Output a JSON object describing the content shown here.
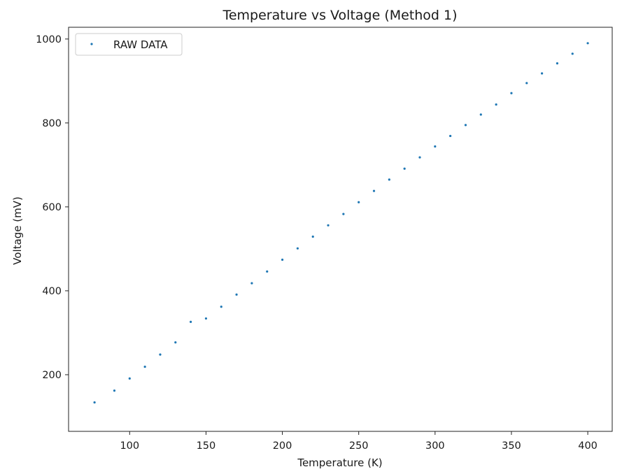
{
  "chart_data": {
    "type": "scatter",
    "title": "Temperature vs Voltage (Method 1)",
    "xlabel": "Temperature (K)",
    "ylabel": "Voltage (mV)",
    "xlim": [
      60,
      416
    ],
    "ylim": [
      65,
      1028
    ],
    "xticks": [
      100,
      150,
      200,
      250,
      300,
      350,
      400
    ],
    "yticks": [
      200,
      400,
      600,
      800,
      1000
    ],
    "grid": false,
    "legend_position": "top-left",
    "series": [
      {
        "name": "RAW DATA",
        "color": "#1f77b4",
        "marker": "point",
        "x": [
          77,
          90,
          100,
          110,
          120,
          130,
          140,
          150,
          160,
          170,
          180,
          190,
          200,
          210,
          220,
          230,
          240,
          250,
          260,
          270,
          280,
          290,
          300,
          310,
          320,
          330,
          340,
          350,
          360,
          370,
          380,
          390,
          400
        ],
        "y": [
          134,
          162,
          191,
          219,
          248,
          277,
          326,
          334,
          362,
          391,
          418,
          446,
          474,
          501,
          529,
          556,
          583,
          611,
          638,
          665,
          691,
          718,
          744,
          769,
          795,
          820,
          844,
          871,
          895,
          918,
          942,
          965,
          990
        ]
      }
    ]
  }
}
